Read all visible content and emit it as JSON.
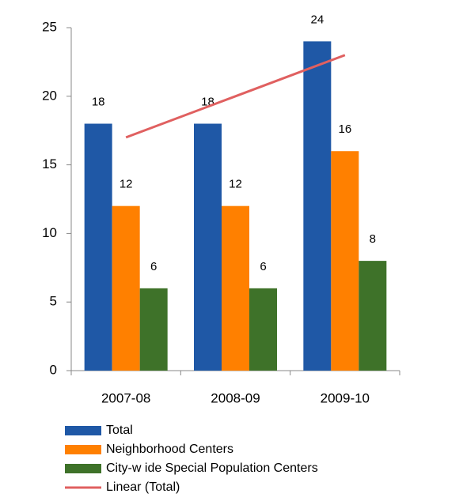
{
  "chart_data": {
    "type": "bar",
    "categories": [
      "2007-08",
      "2008-09",
      "2009-10"
    ],
    "series": [
      {
        "name": "Total",
        "color": "#1f58a6",
        "values": [
          18,
          18,
          24
        ]
      },
      {
        "name": "Neighborhood Centers",
        "color": "#ff8000",
        "values": [
          12,
          12,
          16
        ]
      },
      {
        "name": "City-w ide Special Population Centers",
        "color": "#3e7229",
        "values": [
          6,
          6,
          8
        ]
      }
    ],
    "trendline": {
      "name": "Linear (Total)",
      "color": "#e06060",
      "values": [
        17,
        20,
        23
      ]
    },
    "ylim": [
      0,
      25
    ],
    "yticks": [
      0,
      5,
      10,
      15,
      20,
      25
    ]
  }
}
